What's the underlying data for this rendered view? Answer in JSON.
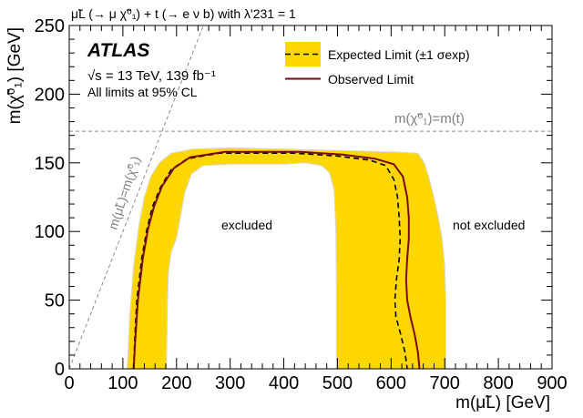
{
  "chart_data": {
    "type": "line",
    "title": "μ̃L (→ μ χ̃⁰₁) + t (→ e ν b) with λ'231 = 1",
    "xlabel": "m(μ̃L) [GeV]",
    "ylabel": "m(χ̃⁰₁) [GeV]",
    "xlim": [
      0,
      900
    ],
    "ylim": [
      0,
      250
    ],
    "x_ticks": [
      0,
      100,
      200,
      300,
      400,
      500,
      600,
      700,
      800,
      900
    ],
    "y_ticks": [
      0,
      50,
      100,
      150,
      200,
      250
    ],
    "colors": {
      "band_fill": "#ffd700",
      "band_edge": "#d8d8d8",
      "expected": "#000000",
      "observed": "#7a0a12",
      "guide": "#8c8c8c"
    },
    "legend": {
      "position": "top-right",
      "expected_label": "Expected Limit (±1 σexp)",
      "observed_label": "Observed Limit"
    },
    "header": {
      "experiment": "ATLAS",
      "energy_text": "√s = 13 TeV, 139 fb⁻¹",
      "cl_text": "All limits at 95% CL"
    },
    "annotations": {
      "excluded": "excluded",
      "not_excluded": "not excluded",
      "kinematic_diag": "m(μ̃L)=m(χ̃⁰₁)",
      "kinematic_top": "m(χ̃⁰₁)=m(t)"
    },
    "top_mass_line": 173,
    "band_outer": [
      [
        108,
        0
      ],
      [
        110,
        15
      ],
      [
        113,
        40
      ],
      [
        120,
        75
      ],
      [
        130,
        105
      ],
      [
        140,
        125
      ],
      [
        152,
        140
      ],
      [
        168,
        150
      ],
      [
        190,
        157
      ],
      [
        230,
        160
      ],
      [
        300,
        161
      ],
      [
        400,
        160
      ],
      [
        500,
        159
      ],
      [
        600,
        158
      ],
      [
        650,
        157
      ],
      [
        662,
        150
      ],
      [
        670,
        140
      ],
      [
        680,
        125
      ],
      [
        688,
        110
      ],
      [
        695,
        95
      ],
      [
        700,
        75
      ],
      [
        702,
        50
      ],
      [
        702,
        25
      ],
      [
        702,
        0
      ]
    ],
    "band_inner": [
      [
        498,
        0
      ],
      [
        498,
        25
      ],
      [
        498,
        60
      ],
      [
        497,
        100
      ],
      [
        494,
        130
      ],
      [
        485,
        143
      ],
      [
        470,
        148
      ],
      [
        440,
        150
      ],
      [
        400,
        149
      ],
      [
        300,
        149
      ],
      [
        250,
        148
      ],
      [
        228,
        142
      ],
      [
        215,
        128
      ],
      [
        208,
        112
      ],
      [
        200,
        95
      ],
      [
        190,
        85
      ],
      [
        185,
        70
      ],
      [
        183,
        45
      ],
      [
        182,
        20
      ],
      [
        181,
        0
      ]
    ],
    "series": [
      {
        "name": "Expected Limit",
        "style": "dashed",
        "x": [
          120,
          122,
          126,
          135,
          145,
          155,
          170,
          190,
          220,
          280,
          350,
          420,
          500,
          560,
          590,
          605,
          612,
          615,
          617,
          615,
          610,
          607,
          609,
          618,
          626,
          630
        ],
        "y": [
          0,
          20,
          50,
          80,
          102,
          118,
          132,
          145,
          153,
          157,
          157,
          157,
          155,
          152,
          148,
          138,
          125,
          110,
          95,
          80,
          65,
          50,
          38,
          25,
          12,
          0
        ]
      },
      {
        "name": "Observed Limit",
        "style": "solid",
        "x": [
          120,
          123,
          128,
          137,
          147,
          158,
          173,
          195,
          225,
          290,
          360,
          430,
          510,
          570,
          605,
          622,
          630,
          633,
          633,
          630,
          628,
          630,
          636,
          644,
          650,
          653
        ],
        "y": [
          0,
          20,
          50,
          80,
          102,
          118,
          133,
          146,
          154,
          158,
          158,
          158,
          156,
          153,
          149,
          140,
          125,
          110,
          95,
          80,
          65,
          50,
          38,
          25,
          12,
          0
        ]
      }
    ]
  }
}
